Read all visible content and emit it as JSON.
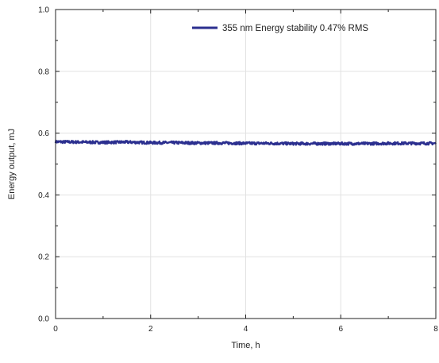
{
  "chart_data": {
    "type": "line",
    "title": "",
    "xlabel": "Time, h",
    "ylabel": "Energy output, mJ",
    "xlim": [
      0,
      8
    ],
    "ylim": [
      0.0,
      1.0
    ],
    "xticks": [
      0,
      2,
      4,
      6,
      8
    ],
    "yticks": [
      0.0,
      0.2,
      0.4,
      0.6,
      0.8,
      1.0
    ],
    "xtick_labels": [
      "0",
      "2",
      "4",
      "6",
      "8"
    ],
    "ytick_labels": [
      "0.0",
      "0.2",
      "0.4",
      "0.6",
      "0.8",
      "1.0"
    ],
    "grid": true,
    "legend_position": "top-right",
    "series": [
      {
        "name": "355 nm Energy stability 0.47% RMS",
        "color": "#2b2f8f",
        "x": [
          0,
          0.5,
          1,
          1.5,
          2,
          2.5,
          3,
          3.5,
          4,
          4.5,
          5,
          5.5,
          6,
          6.5,
          7,
          7.5,
          8
        ],
        "y": [
          0.572,
          0.571,
          0.57,
          0.571,
          0.569,
          0.569,
          0.568,
          0.568,
          0.567,
          0.567,
          0.566,
          0.566,
          0.566,
          0.566,
          0.567,
          0.567,
          0.567
        ]
      }
    ]
  }
}
